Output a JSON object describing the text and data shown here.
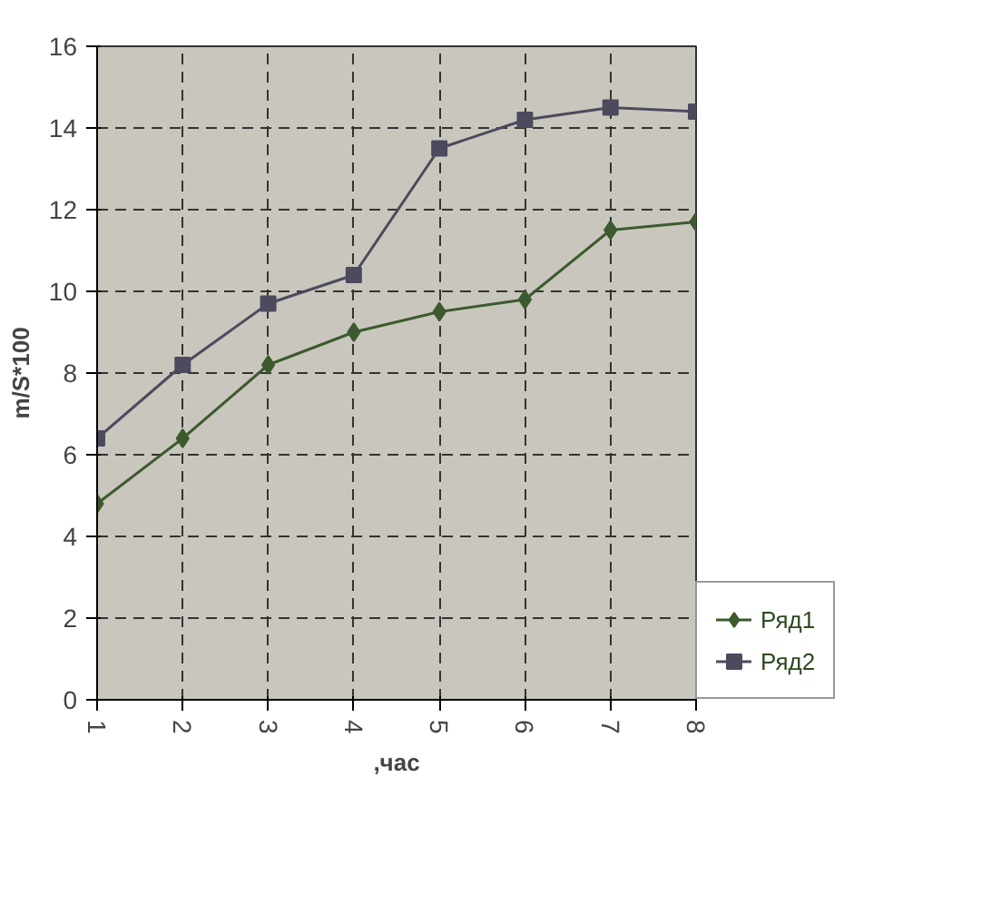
{
  "chart_data": {
    "type": "line",
    "xlabel": ",час",
    "ylabel": "m/S*100",
    "categories": [
      "1",
      "2",
      "3",
      "4",
      "5",
      "6",
      "7",
      "8"
    ],
    "series": [
      {
        "name": "Ряд1",
        "color": "#3d5a2e",
        "marker": "diamond",
        "values": [
          4.8,
          6.4,
          8.2,
          9.0,
          9.5,
          9.8,
          11.5,
          11.7
        ]
      },
      {
        "name": "Ряд2",
        "color": "#4d4a5e",
        "marker": "square",
        "values": [
          6.4,
          8.2,
          9.7,
          10.4,
          13.5,
          14.2,
          14.5,
          14.4
        ]
      }
    ],
    "ylim": [
      0,
      16
    ],
    "yticks": [
      0,
      2,
      4,
      6,
      8,
      10,
      12,
      14,
      16
    ],
    "grid": true,
    "legend": "right",
    "line_style": "solid"
  }
}
